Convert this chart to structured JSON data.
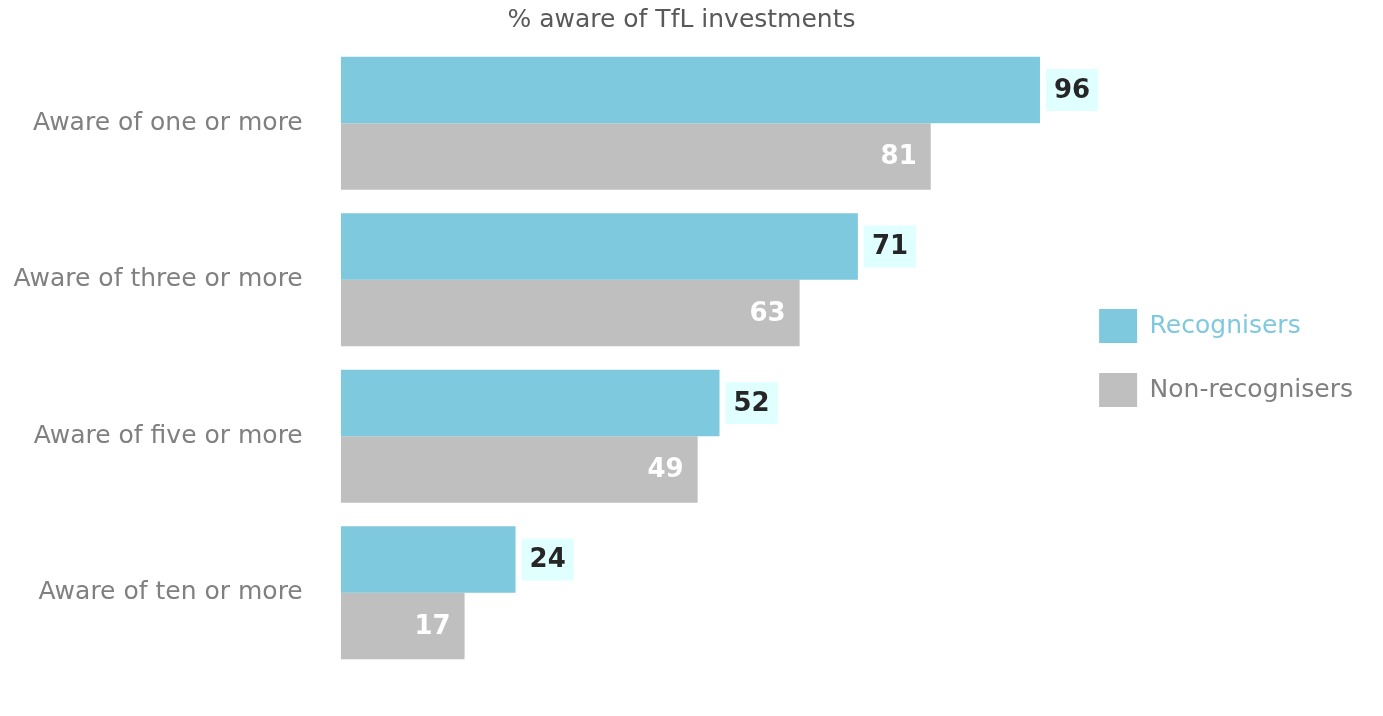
{
  "chart_data": {
    "type": "bar",
    "orientation": "horizontal",
    "title": "% aware of TfL investments",
    "categories": [
      "Aware of one or more",
      "Aware of three or more",
      "Aware of five or more",
      "Aware of ten or more"
    ],
    "series": [
      {
        "name": "Recognisers",
        "color": "#7fc9de",
        "values": [
          96,
          71,
          52,
          24
        ]
      },
      {
        "name": "Non-recognisers",
        "color": "#bfbfbf",
        "values": [
          81,
          63,
          49,
          17
        ]
      }
    ],
    "data_labels": true,
    "legend": "right"
  }
}
